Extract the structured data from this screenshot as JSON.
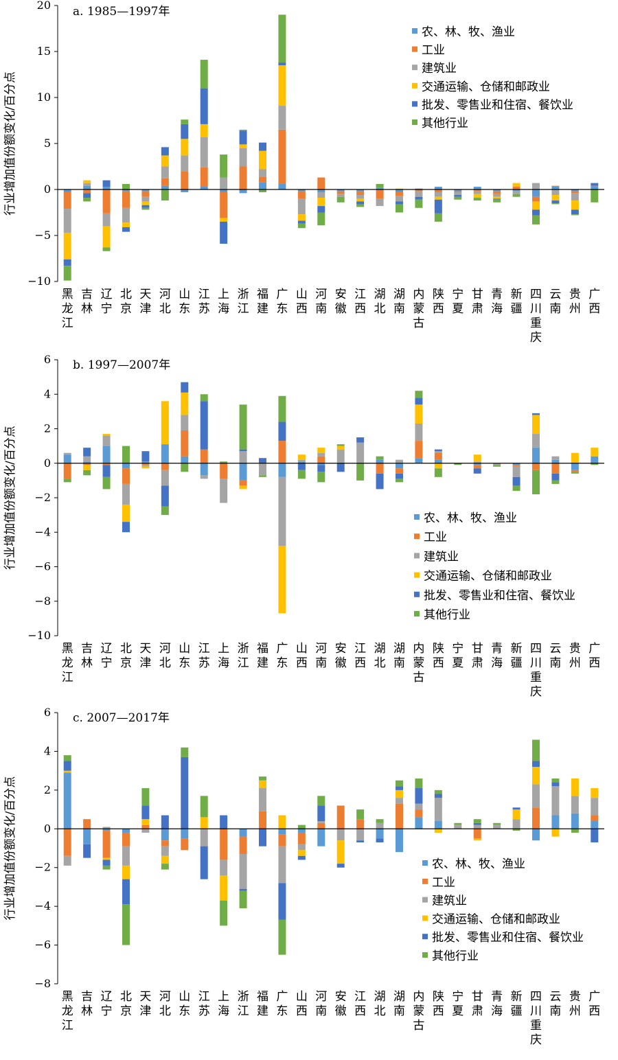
{
  "colors": [
    "#5b9bd5",
    "#ed7d31",
    "#a5a5a5",
    "#ffc000",
    "#4472c4",
    "#70ad47"
  ],
  "legend": [
    "农、林、牧、渔业",
    "工业",
    "建筑业",
    "交通运输、仓储和邮政业",
    "批发、零售业和住宿、餐饮业",
    "其他行业"
  ],
  "ylabel": "行业增加值份额变化/百分点",
  "categories": [
    "黑龙江",
    "吉林",
    "辽宁",
    "北京",
    "天津",
    "河北",
    "山东",
    "江苏",
    "上海",
    "浙江",
    "福建",
    "广东",
    "山西",
    "河南",
    "安徽",
    "江西",
    "湖北",
    "湖南",
    "内蒙古",
    "陕西",
    "宁夏",
    "甘肃",
    "青海",
    "新疆",
    "四川重庆",
    "云南",
    "贵州",
    "广西"
  ],
  "chart_data": [
    {
      "type": "bar",
      "stacked": true,
      "title": "a. 1985—1997年",
      "ylabel": "行业增加值份额变化/百分点",
      "ylim": [
        -10,
        20
      ],
      "yticks": [
        -10,
        -5,
        0,
        5,
        10,
        15,
        20
      ],
      "legend_position": "top-right",
      "categories": [
        "黑龙江",
        "吉林",
        "辽宁",
        "北京",
        "天津",
        "河北",
        "山东",
        "江苏",
        "上海",
        "浙江",
        "福建",
        "广东",
        "山西",
        "河南",
        "安徽",
        "江西",
        "湖北",
        "湖南",
        "内蒙古",
        "陕西",
        "宁夏",
        "甘肃",
        "青海",
        "新疆",
        "四川重庆",
        "云南",
        "贵州",
        "广西"
      ],
      "series": [
        {
          "name": "农、林、牧、渔业",
          "values": [
            -0.3,
            0.4,
            0.3,
            -0.2,
            -0.2,
            0.4,
            -0.3,
            0.3,
            -0.3,
            -0.4,
            0.8,
            0.6,
            -0.2,
            -0.3,
            -0.2,
            -0.2,
            0.2,
            -0.3,
            0.1,
            0.3,
            -0.2,
            0.3,
            -0.2,
            -0.2,
            -0.8,
            0.3,
            -0.2,
            0.3
          ]
        },
        {
          "name": "工业",
          "values": [
            -1.8,
            -0.4,
            -2.6,
            -1.8,
            -0.6,
            0.8,
            2.0,
            2.1,
            -2.8,
            2.5,
            0.6,
            5.9,
            -0.8,
            1.3,
            -0.3,
            -0.4,
            -1.0,
            -0.4,
            -0.2,
            -0.3,
            -0.1,
            -0.2,
            -0.3,
            0.3,
            -0.5,
            0.1,
            -0.2,
            0.1
          ]
        },
        {
          "name": "建筑业",
          "values": [
            -2.6,
            0.3,
            -1.4,
            -1.6,
            -0.5,
            1.3,
            1.7,
            3.3,
            1.3,
            2.0,
            0.8,
            2.6,
            -1.7,
            -0.6,
            -0.3,
            -0.4,
            -0.8,
            -0.6,
            -0.6,
            -0.5,
            -0.3,
            -0.3,
            -0.3,
            -0.3,
            0.7,
            -0.6,
            -0.8,
            0.0
          ]
        },
        {
          "name": "交通运输、仓储和邮政业",
          "values": [
            -2.9,
            0.3,
            -2.3,
            -0.5,
            -0.4,
            1.2,
            1.8,
            1.4,
            -0.4,
            0.4,
            2.0,
            4.4,
            -0.7,
            -0.9,
            0.0,
            -0.3,
            0.0,
            0.1,
            0.0,
            -0.3,
            0.0,
            -0.4,
            -0.2,
            0.4,
            -0.9,
            -0.6,
            -1.0,
            0.0
          ]
        },
        {
          "name": "批发、零售业和住宿、餐饮业",
          "values": [
            -0.7,
            -0.5,
            0.7,
            -0.5,
            -0.3,
            0.9,
            1.6,
            3.9,
            -2.4,
            1.5,
            0.9,
            0.3,
            -0.3,
            -0.7,
            0.0,
            -0.3,
            0.0,
            -0.3,
            -0.3,
            -1.5,
            -0.2,
            0.0,
            -0.1,
            0.0,
            -0.6,
            -0.3,
            -0.5,
            0.3
          ]
        },
        {
          "name": "其他行业",
          "values": [
            -1.6,
            -0.4,
            -0.4,
            0.6,
            -0.2,
            -1.2,
            0.5,
            3.1,
            2.5,
            0.1,
            -0.3,
            5.2,
            -0.5,
            -1.4,
            -0.6,
            -0.3,
            0.4,
            -0.9,
            -0.9,
            -0.9,
            -0.3,
            -0.3,
            -0.3,
            -0.3,
            -1.0,
            -0.1,
            -0.1,
            -1.4
          ]
        }
      ]
    },
    {
      "type": "bar",
      "stacked": true,
      "title": "b. 1997—2007年",
      "ylabel": "行业增加值份额变化/百分点",
      "ylim": [
        -10,
        6
      ],
      "yticks": [
        -10,
        -8,
        -6,
        -4,
        -2,
        0,
        2,
        4,
        6
      ],
      "legend_position": "bottom-right",
      "categories": [
        "黑龙江",
        "吉林",
        "辽宁",
        "北京",
        "天津",
        "河北",
        "山东",
        "江苏",
        "上海",
        "浙江",
        "福建",
        "广东",
        "山西",
        "河南",
        "安徽",
        "江西",
        "湖北",
        "湖南",
        "内蒙古",
        "陕西",
        "宁夏",
        "甘肃",
        "青海",
        "新疆",
        "四川重庆",
        "云南",
        "贵州",
        "广西"
      ],
      "series": [
        {
          "name": "农、林、牧、渔业",
          "values": [
            0.5,
            0.1,
            1.0,
            -0.3,
            0.1,
            1.1,
            0.4,
            -0.7,
            0.0,
            -1.0,
            0.0,
            -0.8,
            0.1,
            -0.1,
            0.0,
            0.0,
            0.2,
            -0.3,
            0.3,
            0.2,
            0.0,
            -0.1,
            0.0,
            -0.1,
            0.9,
            0.2,
            -0.4,
            0.4
          ]
        },
        {
          "name": "工业",
          "values": [
            -0.9,
            -0.1,
            -0.1,
            -0.9,
            -0.1,
            -0.4,
            1.5,
            0.8,
            -0.9,
            -0.3,
            0.0,
            1.3,
            0.0,
            0.4,
            0.0,
            0.0,
            -0.6,
            -0.3,
            1.0,
            0.4,
            0.0,
            -0.2,
            0.0,
            -0.1,
            -0.4,
            -0.6,
            -0.1,
            0.0
          ]
        },
        {
          "name": "建筑业",
          "values": [
            0.1,
            0.3,
            0.6,
            -1.2,
            -0.1,
            -0.9,
            0.9,
            -0.2,
            -1.4,
            0.7,
            -0.7,
            -4.0,
            0.1,
            0.2,
            0.8,
            1.2,
            0.0,
            0.2,
            1.0,
            0.1,
            0.0,
            0.1,
            -0.1,
            -0.6,
            0.8,
            0.2,
            0.0,
            0.0
          ]
        },
        {
          "name": "交通运输、仓储和邮政业",
          "values": [
            0.0,
            -0.3,
            0.1,
            -1.0,
            -0.1,
            2.5,
            1.3,
            0.0,
            0.0,
            -0.2,
            0.0,
            -3.9,
            0.3,
            0.3,
            0.2,
            0.0,
            0.0,
            0.0,
            1.1,
            -0.3,
            0.0,
            0.4,
            0.0,
            0.0,
            1.1,
            0.0,
            0.6,
            0.5
          ]
        },
        {
          "name": "批发、零售业和住宿、餐饮业",
          "values": [
            0.0,
            0.5,
            -0.7,
            -0.6,
            0.6,
            -1.2,
            0.6,
            2.8,
            0.0,
            0.1,
            0.3,
            1.1,
            -0.4,
            -0.4,
            -0.5,
            0.3,
            -0.9,
            -0.3,
            0.4,
            0.1,
            0.0,
            -0.3,
            0.0,
            -0.5,
            0.1,
            -0.4,
            0.0,
            0.0
          ]
        },
        {
          "name": "其他行业",
          "values": [
            -0.2,
            -0.3,
            -0.7,
            1.0,
            0.0,
            -0.5,
            -0.5,
            0.4,
            0.1,
            2.6,
            -0.1,
            1.5,
            -0.5,
            -0.6,
            0.1,
            -1.0,
            0.2,
            -0.2,
            0.4,
            -0.5,
            -0.1,
            0.0,
            -0.1,
            -0.3,
            -1.4,
            -0.2,
            -0.1,
            -0.1
          ]
        }
      ]
    },
    {
      "type": "bar",
      "stacked": true,
      "title": "c. 2007—2017年",
      "ylabel": "行业增加值份额变化/百分点",
      "ylim": [
        -8,
        6
      ],
      "yticks": [
        -8,
        -6,
        -4,
        -2,
        0,
        2,
        4,
        6
      ],
      "legend_position": "bottom-right",
      "categories": [
        "黑龙江",
        "吉林",
        "辽宁",
        "北京",
        "天津",
        "河北",
        "山东",
        "江苏",
        "上海",
        "浙江",
        "福建",
        "广东",
        "山西",
        "河南",
        "安徽",
        "江西",
        "湖北",
        "湖南",
        "内蒙古",
        "陕西",
        "宁夏",
        "甘肃",
        "青海",
        "新疆",
        "四川重庆",
        "云南",
        "贵州",
        "广西"
      ],
      "series": [
        {
          "name": "农、林、牧、渔业",
          "values": [
            2.9,
            -0.8,
            -0.1,
            -0.2,
            0.0,
            -0.6,
            -0.5,
            0.0,
            0.0,
            -0.4,
            0.0,
            -0.3,
            -0.2,
            -0.9,
            0.0,
            0.0,
            -0.5,
            -1.2,
            0.6,
            0.4,
            0.0,
            0.0,
            0.0,
            0.0,
            -0.6,
            0.7,
            0.8,
            0.4
          ]
        },
        {
          "name": "工业",
          "values": [
            -1.4,
            0.5,
            -1.4,
            -0.7,
            0.2,
            -0.3,
            -0.6,
            0.0,
            -1.6,
            -0.9,
            0.9,
            -0.6,
            -0.6,
            0.3,
            1.2,
            0.5,
            0.0,
            1.3,
            0.4,
            0.0,
            0.0,
            -0.5,
            0.0,
            0.0,
            1.1,
            0.0,
            0.0,
            0.3
          ]
        },
        {
          "name": "建筑业",
          "values": [
            -0.5,
            0.0,
            0.1,
            -1.0,
            -0.2,
            -0.5,
            0.0,
            -0.9,
            -0.8,
            -1.8,
            1.2,
            -1.9,
            -0.3,
            0.1,
            -0.6,
            -0.6,
            0.3,
            0.3,
            0.3,
            1.2,
            0.2,
            0.2,
            0.2,
            0.5,
            1.2,
            1.5,
            0.9,
            0.9
          ]
        },
        {
          "name": "交通运输、仓储和邮政业",
          "values": [
            0.1,
            0.0,
            -0.1,
            -0.7,
            0.3,
            -0.4,
            0.0,
            0.6,
            -1.3,
            0.0,
            0.4,
            0.7,
            -0.3,
            0.0,
            -1.2,
            0.0,
            0.0,
            0.4,
            0.0,
            -0.2,
            0.0,
            -0.1,
            0.0,
            0.5,
            0.9,
            -0.4,
            0.9,
            0.5
          ]
        },
        {
          "name": "批发、零售业和住宿、餐饮业",
          "values": [
            0.5,
            -0.7,
            -0.3,
            -1.3,
            0.7,
            0.7,
            3.7,
            -1.7,
            0.7,
            -0.1,
            -0.9,
            -1.9,
            -0.2,
            0.8,
            -0.2,
            -0.1,
            -0.2,
            0.2,
            0.8,
            0.2,
            0.0,
            0.1,
            0.0,
            0.1,
            0.3,
            0.2,
            0.0,
            -0.7
          ]
        },
        {
          "name": "其他行业",
          "values": [
            0.3,
            0.0,
            -0.2,
            -2.1,
            0.9,
            -0.3,
            0.5,
            1.1,
            -1.3,
            -0.9,
            0.2,
            -1.8,
            0.2,
            0.5,
            0.0,
            0.5,
            0.2,
            0.3,
            0.5,
            0.2,
            0.1,
            0.2,
            0.1,
            -0.1,
            1.1,
            0.2,
            -0.2,
            0.0
          ]
        }
      ]
    }
  ]
}
